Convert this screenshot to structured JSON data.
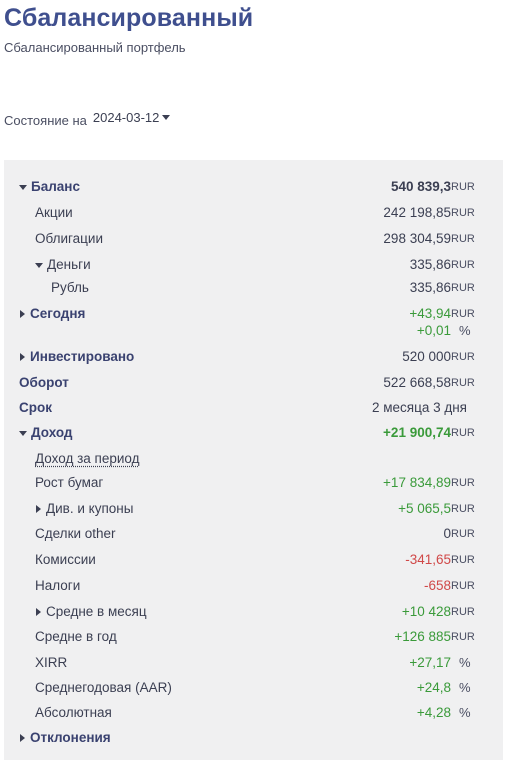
{
  "header": {
    "title": "Сбалансированный",
    "subtitle": "Сбалансированный портфель"
  },
  "state": {
    "label": "Состояние на",
    "date": "2024-03-12"
  },
  "rows": {
    "balance": {
      "label": "Баланс",
      "value": "540 839,3",
      "unit": "RUR"
    },
    "stocks": {
      "label": "Акции",
      "value": "242 198,85",
      "unit": "RUR"
    },
    "bonds": {
      "label": "Облигации",
      "value": "298 304,59",
      "unit": "RUR"
    },
    "money": {
      "label": "Деньги",
      "value": "335,86",
      "unit": "RUR"
    },
    "ruble": {
      "label": "Рубль",
      "value": "335,86",
      "unit": "RUR"
    },
    "today": {
      "label": "Сегодня",
      "value": "+43,94",
      "unit": "RUR",
      "value2": "+0,01",
      "unit2": "%"
    },
    "invested": {
      "label": "Инвестировано",
      "value": "520 000",
      "unit": "RUR"
    },
    "turnover": {
      "label": "Оборот",
      "value": "522 668,58",
      "unit": "RUR"
    },
    "term": {
      "label": "Срок",
      "value": "2 месяца 3 дня"
    },
    "income": {
      "label": "Доход",
      "value": "+21 900,74",
      "unit": "RUR"
    },
    "income_period": {
      "label": "Доход за период"
    },
    "growth": {
      "label": "Рост бумаг",
      "value": "+17 834,89",
      "unit": "RUR"
    },
    "dividends": {
      "label": "Див. и купоны",
      "value": "+5 065,5",
      "unit": "RUR"
    },
    "deals_other": {
      "label": "Сделки other",
      "value": "0",
      "unit": "RUR"
    },
    "fees": {
      "label": "Комиссии",
      "value": "-341,65",
      "unit": "RUR"
    },
    "taxes": {
      "label": "Налоги",
      "value": "-658",
      "unit": "RUR"
    },
    "avg_month": {
      "label": "Средне в месяц",
      "value": "+10 428",
      "unit": "RUR"
    },
    "avg_year": {
      "label": "Средне в год",
      "value": "+126 885",
      "unit": "RUR"
    },
    "xirr": {
      "label": "XIRR",
      "value": "+27,17",
      "unit": "%"
    },
    "aar": {
      "label": "Среднегодовая (AAR)",
      "value": "+24,8",
      "unit": "%"
    },
    "absolute": {
      "label": "Абсолютная",
      "value": "+4,28",
      "unit": "%"
    },
    "deviations": {
      "label": "Отклонения"
    }
  },
  "colors": {
    "title": "#3f4f8e",
    "panel_bg": "#f0f0f1",
    "positive": "#3a9a3a",
    "negative": "#d04848"
  },
  "icons": {
    "expanded": "triangle-down-icon",
    "collapsed": "triangle-right-icon",
    "dropdown": "caret-down-icon"
  }
}
